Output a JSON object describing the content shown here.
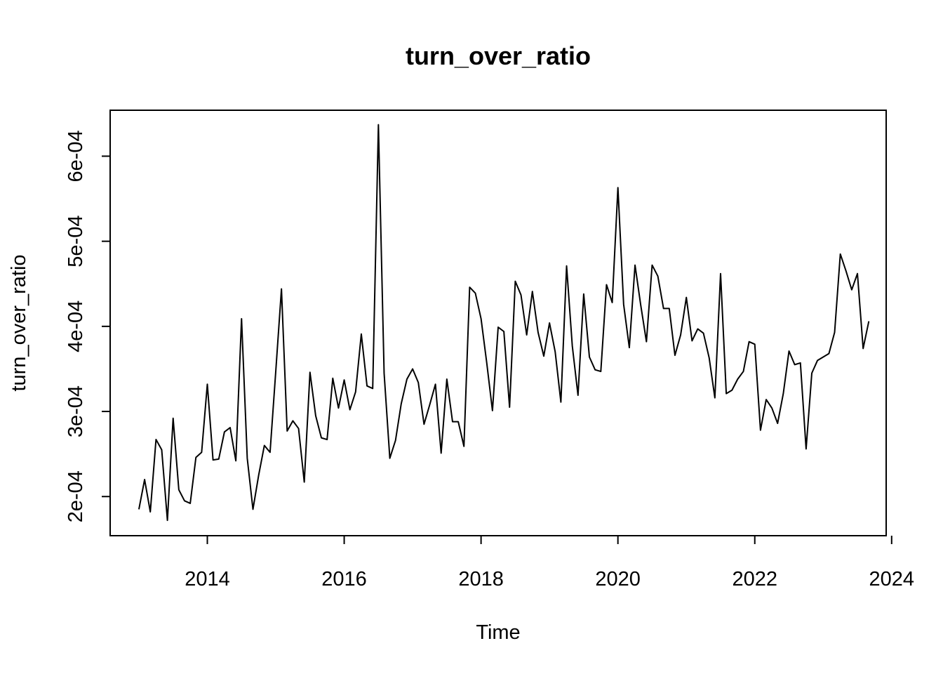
{
  "chart_data": {
    "type": "line",
    "title": "turn_over_ratio",
    "xlabel": "Time",
    "ylabel": "turn_over_ratio",
    "x_ticks": [
      2014,
      2016,
      2018,
      2020,
      2022,
      2024
    ],
    "x_tick_labels": [
      "2014",
      "2016",
      "2018",
      "2020",
      "2022",
      "2024"
    ],
    "y_ticks": [
      0.0002,
      0.0003,
      0.0004,
      0.0005,
      0.0006
    ],
    "y_tick_labels": [
      "2e-04",
      "3e-04",
      "4e-04",
      "5e-04",
      "6e-04"
    ],
    "xlim": [
      2012.58,
      2023.92
    ],
    "ylim": [
      0.000154,
      0.000654
    ],
    "grid": false,
    "series": [
      {
        "start": 2013.0,
        "frequency": 12,
        "values": [
          0.000185,
          0.00022,
          0.000182,
          0.000267,
          0.000255,
          0.000172,
          0.000292,
          0.000208,
          0.000195,
          0.000192,
          0.000246,
          0.000252,
          0.000332,
          0.000243,
          0.000244,
          0.000276,
          0.000281,
          0.000242,
          0.000409,
          0.000245,
          0.000185,
          0.000225,
          0.00026,
          0.000252,
          0.000347,
          0.000444,
          0.000277,
          0.000289,
          0.00028,
          0.000217,
          0.000346,
          0.000295,
          0.000269,
          0.000267,
          0.000339,
          0.000304,
          0.000337,
          0.000302,
          0.000323,
          0.000391,
          0.00033,
          0.000327,
          0.000637,
          0.000345,
          0.000245,
          0.000266,
          0.000309,
          0.000338,
          0.00035,
          0.000334,
          0.000285,
          0.000308,
          0.000332,
          0.000251,
          0.000338,
          0.000288,
          0.000288,
          0.000259,
          0.000446,
          0.000439,
          0.000409,
          0.000357,
          0.000301,
          0.000399,
          0.000394,
          0.000305,
          0.000453,
          0.000437,
          0.00039,
          0.000441,
          0.000393,
          0.000365,
          0.000404,
          0.00037,
          0.000311,
          0.000471,
          0.000377,
          0.000319,
          0.000438,
          0.000364,
          0.000349,
          0.000347,
          0.000449,
          0.000428,
          0.000563,
          0.000426,
          0.000375,
          0.000472,
          0.000425,
          0.000382,
          0.000472,
          0.000459,
          0.000421,
          0.000421,
          0.000366,
          0.00039,
          0.000434,
          0.000383,
          0.000397,
          0.000392,
          0.000363,
          0.000316,
          0.000462,
          0.000321,
          0.000325,
          0.000338,
          0.000347,
          0.000382,
          0.000379,
          0.000278,
          0.000314,
          0.000304,
          0.000286,
          0.000321,
          0.000371,
          0.000355,
          0.000357,
          0.000256,
          0.000345,
          0.00036,
          0.000364,
          0.000368,
          0.000393,
          0.000485,
          0.000465,
          0.000443,
          0.000462,
          0.000374,
          0.000406
        ]
      }
    ]
  }
}
